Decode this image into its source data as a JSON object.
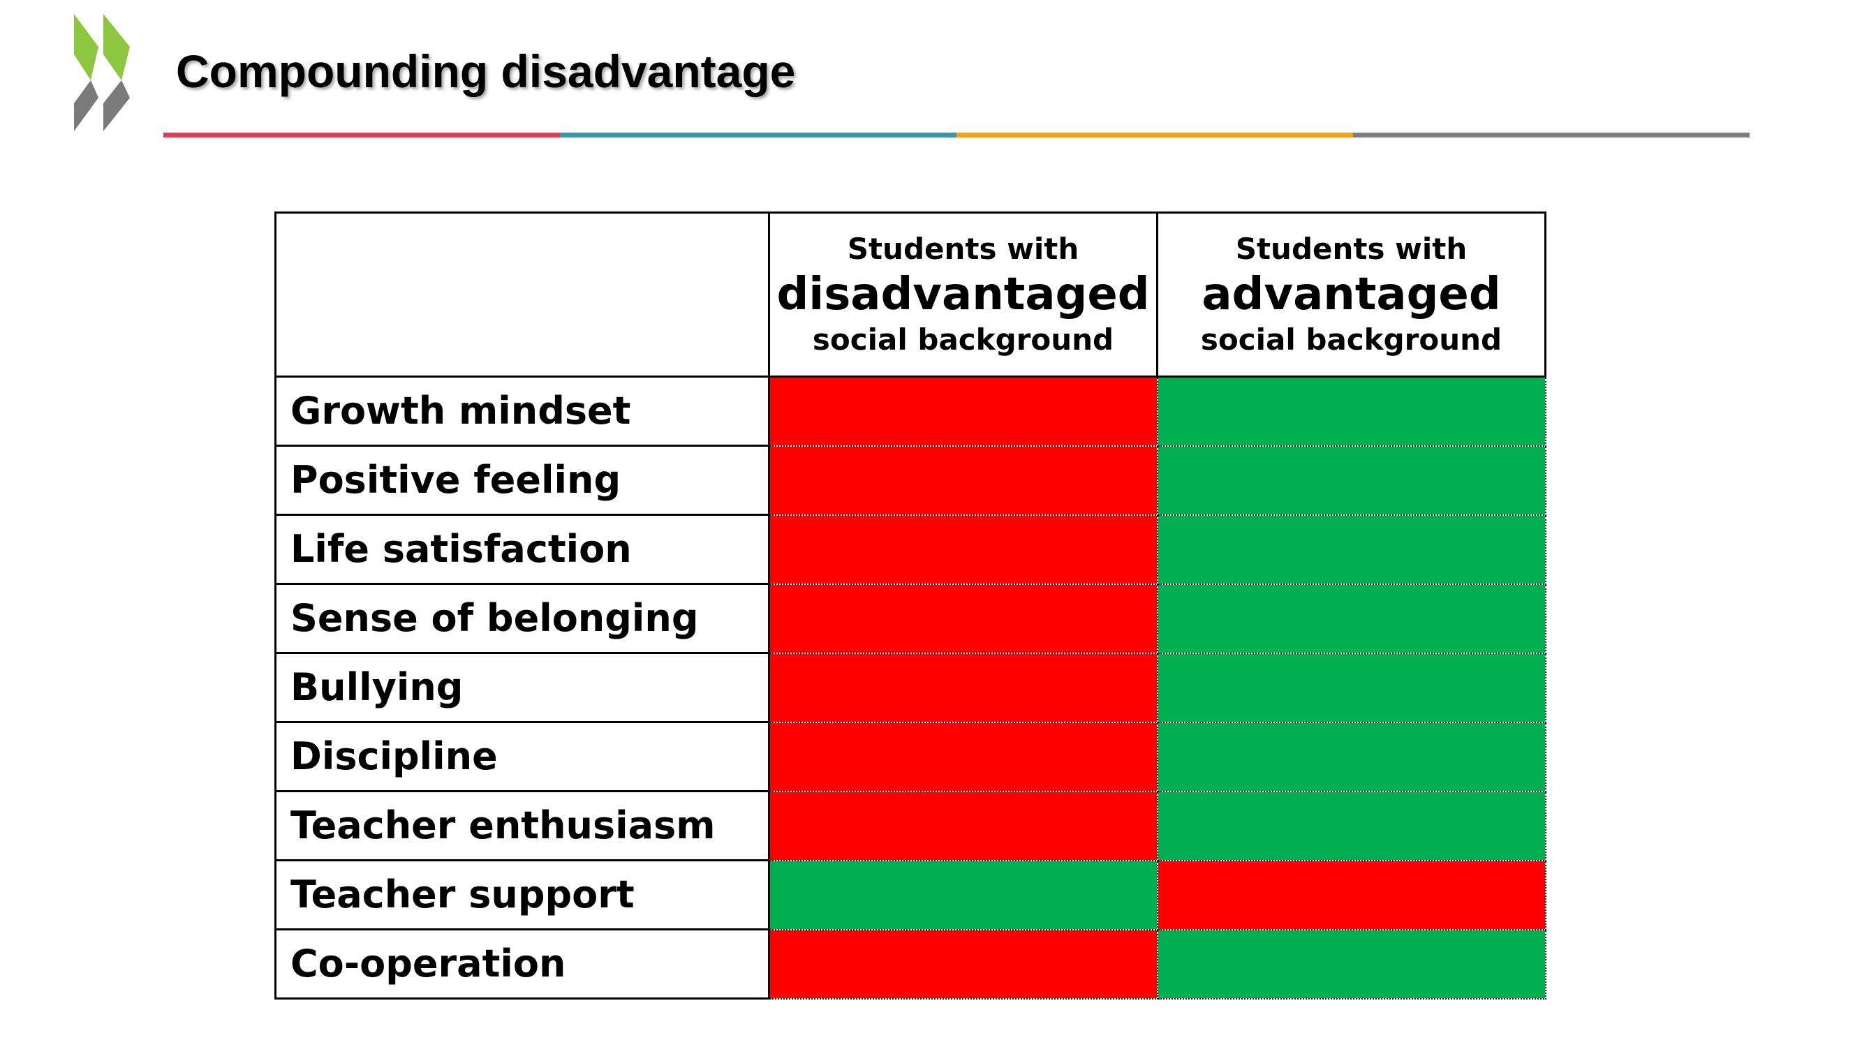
{
  "slide": {
    "title": "Compounding disadvantage"
  },
  "logo": {
    "icon": "oecd-chevrons-icon",
    "colors": [
      "#8dc63f",
      "#7a7a7a"
    ]
  },
  "rule": {
    "colors": [
      "#d9415a",
      "#3a94ab",
      "#f5a316",
      "#7d7d7d"
    ]
  },
  "legend_colors": {
    "red": "#ff0000",
    "green": "#00b050"
  },
  "table": {
    "columns": [
      {
        "top": "Students with",
        "emphasis": "disadvantaged",
        "bottom": "social background"
      },
      {
        "top": "Students with",
        "emphasis": "advantaged",
        "bottom": "social background"
      }
    ],
    "rows": [
      {
        "label": "Growth mindset",
        "disadvantaged": "red",
        "advantaged": "green"
      },
      {
        "label": "Positive feeling",
        "disadvantaged": "red",
        "advantaged": "green"
      },
      {
        "label": "Life satisfaction",
        "disadvantaged": "red",
        "advantaged": "green"
      },
      {
        "label": "Sense of belonging",
        "disadvantaged": "red",
        "advantaged": "green"
      },
      {
        "label": "Bullying",
        "disadvantaged": "red",
        "advantaged": "green"
      },
      {
        "label": "Discipline",
        "disadvantaged": "red",
        "advantaged": "green"
      },
      {
        "label": "Teacher enthusiasm",
        "disadvantaged": "red",
        "advantaged": "green"
      },
      {
        "label": "Teacher support",
        "disadvantaged": "green",
        "advantaged": "red"
      },
      {
        "label": "Co-operation",
        "disadvantaged": "red",
        "advantaged": "green"
      }
    ]
  }
}
